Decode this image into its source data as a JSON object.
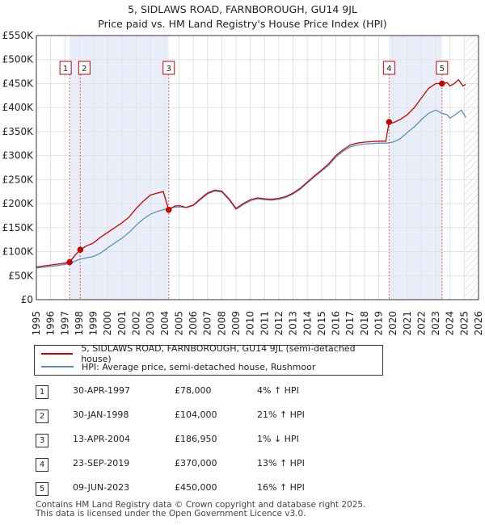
{
  "chart_data": {
    "type": "line",
    "title": "5, SIDLAWS ROAD, FARNBOROUGH, GU14 9JL",
    "subtitle": "Price paid vs. HM Land Registry's House Price Index (HPI)",
    "xlim": [
      1995,
      2026
    ],
    "ylim": [
      0,
      550000
    ],
    "x_ticks": [
      "1995",
      "1996",
      "1997",
      "1998",
      "1999",
      "2000",
      "2001",
      "2002",
      "2003",
      "2004",
      "2005",
      "2006",
      "2007",
      "2008",
      "2009",
      "2010",
      "2011",
      "2012",
      "2013",
      "2014",
      "2015",
      "2016",
      "2017",
      "2018",
      "2019",
      "2020",
      "2021",
      "2022",
      "2023",
      "2024",
      "2025",
      "2026"
    ],
    "y_ticks": [
      {
        "value": 0,
        "label": "£0"
      },
      {
        "value": 50000,
        "label": "£50K"
      },
      {
        "value": 100000,
        "label": "£100K"
      },
      {
        "value": 150000,
        "label": "£150K"
      },
      {
        "value": 200000,
        "label": "£200K"
      },
      {
        "value": 250000,
        "label": "£250K"
      },
      {
        "value": 300000,
        "label": "£300K"
      },
      {
        "value": 350000,
        "label": "£350K"
      },
      {
        "value": 400000,
        "label": "£400K"
      },
      {
        "value": 450000,
        "label": "£450K"
      },
      {
        "value": 500000,
        "label": "£500K"
      },
      {
        "value": 550000,
        "label": "£550K"
      }
    ],
    "grid": true,
    "shaded_periods": [
      [
        1997.33,
        2004.28
      ],
      [
        2019.73,
        2023.44
      ]
    ],
    "future_hatch_from": 2025.0,
    "series": [
      {
        "name": "5, SIDLAWS ROAD, FARNBOROUGH, GU14 9JL (semi-detached house)",
        "color": "#cc0000",
        "points": [
          [
            1995.0,
            68000
          ],
          [
            1995.5,
            70000
          ],
          [
            1996.0,
            72000
          ],
          [
            1996.5,
            74000
          ],
          [
            1997.0,
            76000
          ],
          [
            1997.33,
            78000
          ],
          [
            1997.7,
            92000
          ],
          [
            1998.08,
            104000
          ],
          [
            1998.5,
            112000
          ],
          [
            1999.0,
            118000
          ],
          [
            1999.5,
            130000
          ],
          [
            2000.0,
            140000
          ],
          [
            2000.5,
            150000
          ],
          [
            2001.0,
            160000
          ],
          [
            2001.5,
            172000
          ],
          [
            2002.0,
            190000
          ],
          [
            2002.5,
            205000
          ],
          [
            2003.0,
            218000
          ],
          [
            2003.5,
            222000
          ],
          [
            2003.9,
            225000
          ],
          [
            2004.28,
            186950
          ],
          [
            2004.7,
            195000
          ],
          [
            2005.0,
            196000
          ],
          [
            2005.5,
            192000
          ],
          [
            2006.0,
            197000
          ],
          [
            2006.5,
            210000
          ],
          [
            2007.0,
            222000
          ],
          [
            2007.5,
            228000
          ],
          [
            2008.0,
            226000
          ],
          [
            2008.5,
            210000
          ],
          [
            2009.0,
            190000
          ],
          [
            2009.5,
            200000
          ],
          [
            2010.0,
            208000
          ],
          [
            2010.5,
            212000
          ],
          [
            2011.0,
            210000
          ],
          [
            2011.5,
            209000
          ],
          [
            2012.0,
            211000
          ],
          [
            2012.5,
            215000
          ],
          [
            2013.0,
            222000
          ],
          [
            2013.5,
            232000
          ],
          [
            2014.0,
            245000
          ],
          [
            2014.5,
            258000
          ],
          [
            2015.0,
            270000
          ],
          [
            2015.5,
            283000
          ],
          [
            2016.0,
            300000
          ],
          [
            2016.5,
            312000
          ],
          [
            2017.0,
            322000
          ],
          [
            2017.5,
            326000
          ],
          [
            2018.0,
            328000
          ],
          [
            2018.5,
            329000
          ],
          [
            2019.0,
            330000
          ],
          [
            2019.5,
            330000
          ],
          [
            2019.73,
            370000
          ],
          [
            2020.0,
            368000
          ],
          [
            2020.5,
            375000
          ],
          [
            2021.0,
            385000
          ],
          [
            2021.5,
            400000
          ],
          [
            2022.0,
            420000
          ],
          [
            2022.5,
            440000
          ],
          [
            2023.0,
            450000
          ],
          [
            2023.44,
            450000
          ],
          [
            2023.8,
            452000
          ],
          [
            2024.0,
            445000
          ],
          [
            2024.3,
            450000
          ],
          [
            2024.6,
            458000
          ],
          [
            2024.9,
            445000
          ],
          [
            2025.1,
            448000
          ]
        ]
      },
      {
        "name": "HPI: Average price, semi-detached house, Rushmoor",
        "color": "#5b8fc7",
        "points": [
          [
            1995.0,
            66000
          ],
          [
            1995.5,
            67500
          ],
          [
            1996.0,
            69000
          ],
          [
            1996.5,
            71000
          ],
          [
            1997.0,
            73500
          ],
          [
            1997.33,
            75000
          ],
          [
            1998.0,
            84000
          ],
          [
            1998.5,
            87000
          ],
          [
            1999.0,
            90000
          ],
          [
            1999.5,
            97000
          ],
          [
            2000.0,
            108000
          ],
          [
            2000.5,
            118000
          ],
          [
            2001.0,
            128000
          ],
          [
            2001.5,
            140000
          ],
          [
            2002.0,
            155000
          ],
          [
            2002.5,
            168000
          ],
          [
            2003.0,
            178000
          ],
          [
            2003.5,
            184000
          ],
          [
            2004.0,
            188000
          ],
          [
            2004.5,
            192000
          ],
          [
            2005.0,
            193000
          ],
          [
            2005.5,
            192000
          ],
          [
            2006.0,
            196000
          ],
          [
            2006.5,
            208000
          ],
          [
            2007.0,
            220000
          ],
          [
            2007.5,
            226000
          ],
          [
            2008.0,
            224000
          ],
          [
            2008.5,
            208000
          ],
          [
            2009.0,
            188000
          ],
          [
            2009.5,
            198000
          ],
          [
            2010.0,
            206000
          ],
          [
            2010.5,
            210000
          ],
          [
            2011.0,
            208000
          ],
          [
            2011.5,
            207000
          ],
          [
            2012.0,
            209000
          ],
          [
            2012.5,
            213000
          ],
          [
            2013.0,
            220000
          ],
          [
            2013.5,
            230000
          ],
          [
            2014.0,
            243000
          ],
          [
            2014.5,
            256000
          ],
          [
            2015.0,
            268000
          ],
          [
            2015.5,
            280000
          ],
          [
            2016.0,
            297000
          ],
          [
            2016.5,
            309000
          ],
          [
            2017.0,
            318000
          ],
          [
            2017.5,
            322000
          ],
          [
            2018.0,
            324000
          ],
          [
            2018.5,
            325000
          ],
          [
            2019.0,
            326000
          ],
          [
            2019.5,
            326000
          ],
          [
            2020.0,
            328000
          ],
          [
            2020.5,
            335000
          ],
          [
            2021.0,
            348000
          ],
          [
            2021.5,
            360000
          ],
          [
            2022.0,
            375000
          ],
          [
            2022.5,
            388000
          ],
          [
            2023.0,
            395000
          ],
          [
            2023.44,
            388000
          ],
          [
            2023.8,
            385000
          ],
          [
            2024.0,
            378000
          ],
          [
            2024.5,
            388000
          ],
          [
            2024.8,
            395000
          ],
          [
            2025.1,
            380000
          ]
        ]
      }
    ],
    "sale_markers": [
      {
        "id": "1",
        "x": 1997.33,
        "y": 78000
      },
      {
        "id": "2",
        "x": 1998.08,
        "y": 104000
      },
      {
        "id": "3",
        "x": 2004.28,
        "y": 186950
      },
      {
        "id": "4",
        "x": 2019.73,
        "y": 370000
      },
      {
        "id": "5",
        "x": 2023.44,
        "y": 450000
      }
    ]
  },
  "legend": {
    "property_label": "5, SIDLAWS ROAD, FARNBOROUGH, GU14 9JL (semi-detached house)",
    "hpi_label": "HPI: Average price, semi-detached house, Rushmoor",
    "property_color": "#cc0000",
    "hpi_color": "#5b8fc7"
  },
  "sales": [
    {
      "num": "1",
      "date": "30-APR-1997",
      "price": "£78,000",
      "hpi": "4% ↑ HPI"
    },
    {
      "num": "2",
      "date": "30-JAN-1998",
      "price": "£104,000",
      "hpi": "21% ↑ HPI"
    },
    {
      "num": "3",
      "date": "13-APR-2004",
      "price": "£186,950",
      "hpi": "1% ↓ HPI"
    },
    {
      "num": "4",
      "date": "23-SEP-2019",
      "price": "£370,000",
      "hpi": "13% ↑ HPI"
    },
    {
      "num": "5",
      "date": "09-JUN-2023",
      "price": "£450,000",
      "hpi": "16% ↑ HPI"
    }
  ],
  "footer": {
    "line1": "Contains HM Land Registry data © Crown copyright and database right 2025.",
    "line2": "This data is licensed under the Open Government Licence v3.0."
  }
}
